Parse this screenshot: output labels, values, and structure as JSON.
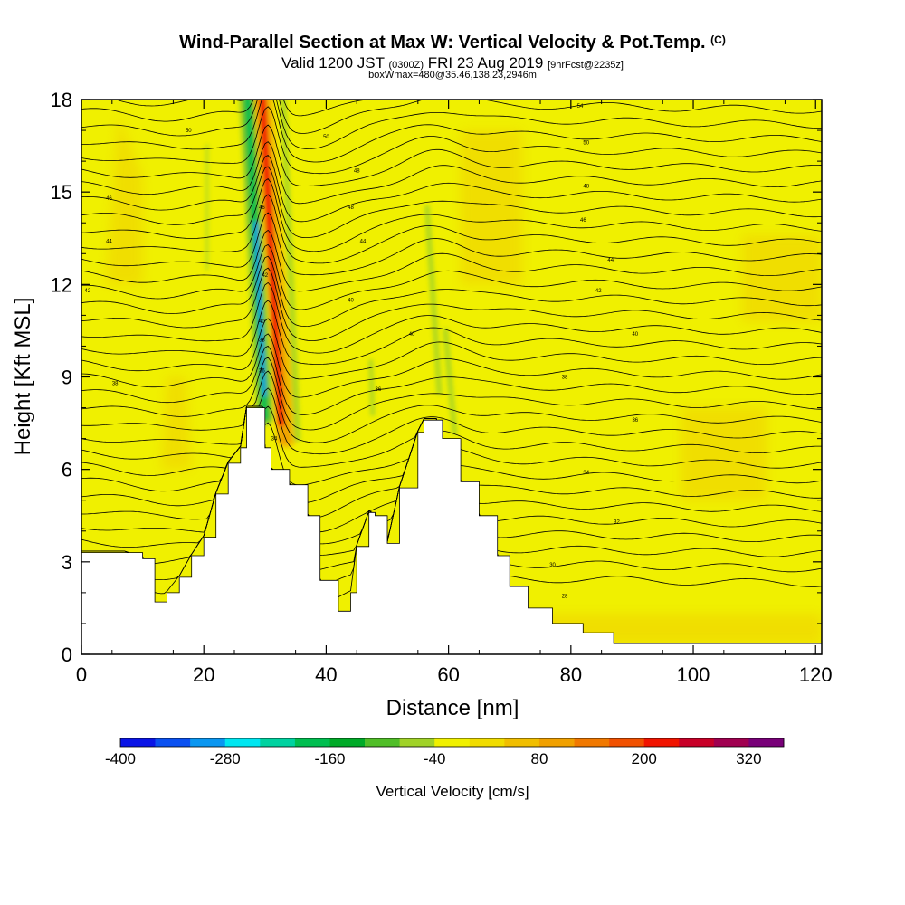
{
  "title": {
    "main": "Wind-Parallel Section at Max W: Vertical Velocity & Pot.Temp.",
    "main_suffix": "(C)",
    "valid_prefix": "Valid 1200 JST",
    "valid_utc": "(0300Z)",
    "valid_date": "FRI 23 Aug 2019",
    "forecast": "[9hrFcst@2235z]",
    "box_info": "boxWmax=480@35.46,138.23,2946m"
  },
  "chart_data": {
    "type": "heatmap",
    "xlabel": "Distance [nm]",
    "ylabel": "Height [Kft MSL]",
    "xlim": [
      0,
      121
    ],
    "ylim": [
      0,
      18
    ],
    "x_ticks": [
      0,
      20,
      40,
      60,
      80,
      100,
      120
    ],
    "y_ticks": [
      0,
      3,
      6,
      9,
      12,
      15,
      18
    ],
    "colorbar": {
      "label": "Vertical Velocity [cm/s]",
      "min": -400,
      "max": 360,
      "step": 40,
      "tick_labels": [
        "-400",
        "-280",
        "-160",
        "-40",
        "80",
        "200",
        "320"
      ],
      "colors": [
        "#0a14e6",
        "#0a50f0",
        "#0a96f0",
        "#00e6f0",
        "#00d2a0",
        "#00be50",
        "#00aa28",
        "#50be28",
        "#a0d228",
        "#f0f000",
        "#f0dc00",
        "#f0be00",
        "#f0a000",
        "#f07800",
        "#f05000",
        "#f01400",
        "#c80028",
        "#a00050",
        "#780078"
      ]
    },
    "terrain_height_kft": [
      {
        "x": 0,
        "h": 3.3
      },
      {
        "x": 7,
        "h": 3.3
      },
      {
        "x": 10,
        "h": 3.1
      },
      {
        "x": 12,
        "h": 1.7
      },
      {
        "x": 14,
        "h": 2.0
      },
      {
        "x": 16,
        "h": 2.5
      },
      {
        "x": 18,
        "h": 3.2
      },
      {
        "x": 20,
        "h": 3.8
      },
      {
        "x": 22,
        "h": 5.2
      },
      {
        "x": 24,
        "h": 6.2
      },
      {
        "x": 26,
        "h": 6.7
      },
      {
        "x": 27,
        "h": 8.0
      },
      {
        "x": 29.5,
        "h": 8.0
      },
      {
        "x": 30,
        "h": 6.7
      },
      {
        "x": 31,
        "h": 6.0
      },
      {
        "x": 34,
        "h": 5.5
      },
      {
        "x": 37,
        "h": 4.5
      },
      {
        "x": 39,
        "h": 2.4
      },
      {
        "x": 42,
        "h": 1.4
      },
      {
        "x": 44,
        "h": 2.0
      },
      {
        "x": 45,
        "h": 3.5
      },
      {
        "x": 47,
        "h": 4.6
      },
      {
        "x": 48,
        "h": 4.5
      },
      {
        "x": 50,
        "h": 3.6
      },
      {
        "x": 52,
        "h": 5.4
      },
      {
        "x": 55,
        "h": 7.2
      },
      {
        "x": 56,
        "h": 7.6
      },
      {
        "x": 58,
        "h": 7.6
      },
      {
        "x": 59,
        "h": 7.0
      },
      {
        "x": 62,
        "h": 5.6
      },
      {
        "x": 65,
        "h": 4.5
      },
      {
        "x": 68,
        "h": 3.2
      },
      {
        "x": 70,
        "h": 2.2
      },
      {
        "x": 73,
        "h": 1.5
      },
      {
        "x": 77,
        "h": 1.0
      },
      {
        "x": 82,
        "h": 0.7
      },
      {
        "x": 87,
        "h": 0.35
      },
      {
        "x": 92,
        "h": 0.35
      },
      {
        "x": 100,
        "h": 0.35
      },
      {
        "x": 121,
        "h": 0.35
      }
    ],
    "theta_contour_labels": [
      {
        "x": 4.5,
        "y": 14.8,
        "label": "46"
      },
      {
        "x": 4.5,
        "y": 13.4,
        "label": "44"
      },
      {
        "x": 1,
        "y": 11.8,
        "label": "42"
      },
      {
        "x": 5.5,
        "y": 8.8,
        "label": "38"
      },
      {
        "x": 17.5,
        "y": 17.0,
        "label": "50"
      },
      {
        "x": 40,
        "y": 16.8,
        "label": "50"
      },
      {
        "x": 45,
        "y": 15.7,
        "label": "48"
      },
      {
        "x": 44,
        "y": 14.5,
        "label": "48"
      },
      {
        "x": 46,
        "y": 13.4,
        "label": "44"
      },
      {
        "x": 44,
        "y": 11.5,
        "label": "40"
      },
      {
        "x": 54,
        "y": 10.4,
        "label": "40"
      },
      {
        "x": 48.5,
        "y": 8.6,
        "label": "36"
      },
      {
        "x": 81.5,
        "y": 17.8,
        "label": "54"
      },
      {
        "x": 82.5,
        "y": 16.6,
        "label": "50"
      },
      {
        "x": 82.5,
        "y": 15.2,
        "label": "48"
      },
      {
        "x": 82,
        "y": 14.1,
        "label": "46"
      },
      {
        "x": 86.5,
        "y": 12.8,
        "label": "44"
      },
      {
        "x": 84.5,
        "y": 11.8,
        "label": "42"
      },
      {
        "x": 90.5,
        "y": 10.4,
        "label": "40"
      },
      {
        "x": 79,
        "y": 9.0,
        "label": "38"
      },
      {
        "x": 90.5,
        "y": 7.6,
        "label": "36"
      },
      {
        "x": 82.5,
        "y": 5.9,
        "label": "34"
      },
      {
        "x": 87.5,
        "y": 4.3,
        "label": "32"
      },
      {
        "x": 77,
        "y": 2.9,
        "label": "30"
      },
      {
        "x": 79,
        "y": 1.9,
        "label": "28"
      },
      {
        "x": 29.5,
        "y": 14.5,
        "label": "46"
      },
      {
        "x": 30,
        "y": 12.3,
        "label": "42"
      },
      {
        "x": 29.5,
        "y": 10.8,
        "label": "40"
      },
      {
        "x": 29.5,
        "y": 10.2,
        "label": "38"
      },
      {
        "x": 29.5,
        "y": 9.2,
        "label": "36"
      },
      {
        "x": 31.5,
        "y": 7.0,
        "label": "34"
      }
    ]
  }
}
